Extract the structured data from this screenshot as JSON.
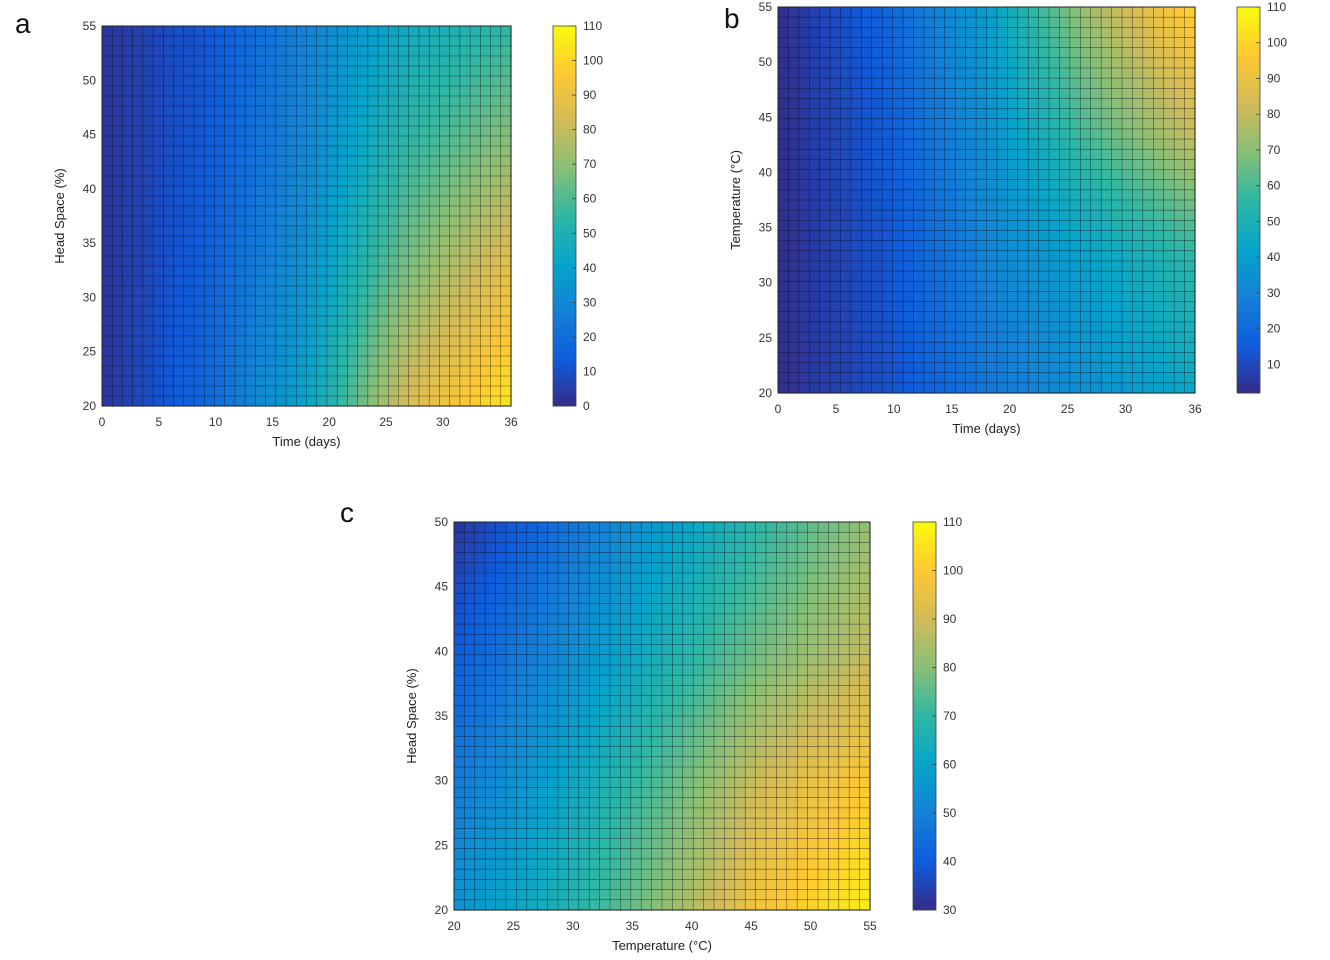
{
  "colormap": "parula",
  "chart_data": [
    {
      "type": "heatmap",
      "panel_label": "a",
      "xlabel": "Time (days)",
      "ylabel": "Head Space (%)",
      "xlim": [
        0,
        36
      ],
      "ylim": [
        20,
        55
      ],
      "xticks": [
        "0",
        "5",
        "10",
        "15",
        "20",
        "25",
        "30",
        "36"
      ],
      "yticks": [
        "20",
        "25",
        "30",
        "35",
        "40",
        "45",
        "50",
        "55"
      ],
      "colorbar": {
        "range": [
          0,
          110
        ],
        "ticks": [
          "0",
          "10",
          "20",
          "30",
          "40",
          "50",
          "60",
          "70",
          "80",
          "90",
          "100",
          "110"
        ]
      },
      "grid_x": [
        0,
        9,
        18,
        27,
        36
      ],
      "grid_y": [
        20,
        32,
        44,
        55
      ],
      "z": [
        [
          3,
          18,
          42,
          85,
          105
        ],
        [
          3,
          15,
          35,
          68,
          90
        ],
        [
          3,
          13,
          30,
          55,
          70
        ],
        [
          3,
          12,
          28,
          45,
          55
        ]
      ],
      "grid": true
    },
    {
      "type": "heatmap",
      "panel_label": "b",
      "xlabel": "Time (days)",
      "ylabel": "Temperature (°C)",
      "xlim": [
        0,
        36
      ],
      "ylim": [
        20,
        55
      ],
      "xticks": [
        "0",
        "5",
        "10",
        "15",
        "20",
        "25",
        "30",
        "36"
      ],
      "yticks": [
        "20",
        "25",
        "30",
        "35",
        "40",
        "45",
        "50",
        "55"
      ],
      "colorbar": {
        "range": [
          2,
          110
        ],
        "ticks": [
          "10",
          "20",
          "30",
          "40",
          "50",
          "60",
          "70",
          "80",
          "90",
          "100",
          "110"
        ]
      },
      "grid_x": [
        0,
        9,
        18,
        27,
        36
      ],
      "grid_y": [
        20,
        32,
        44,
        55
      ],
      "z": [
        [
          3,
          12,
          25,
          35,
          45
        ],
        [
          3,
          13,
          30,
          42,
          55
        ],
        [
          3,
          15,
          35,
          62,
          82
        ],
        [
          3,
          18,
          40,
          75,
          100
        ]
      ],
      "grid": true
    },
    {
      "type": "heatmap",
      "panel_label": "c",
      "xlabel": "Temperature (°C)",
      "ylabel": "Head Space (%)",
      "xlim": [
        20,
        55
      ],
      "ylim": [
        20,
        50
      ],
      "xticks": [
        "20",
        "25",
        "30",
        "35",
        "40",
        "45",
        "50",
        "55"
      ],
      "yticks": [
        "20",
        "25",
        "30",
        "35",
        "40",
        "45",
        "50"
      ],
      "colorbar": {
        "range": [
          30,
          110
        ],
        "ticks": [
          "30",
          "40",
          "50",
          "60",
          "70",
          "80",
          "90",
          "100",
          "110"
        ]
      },
      "grid_x": [
        20,
        29,
        38,
        46,
        55
      ],
      "grid_y": [
        20,
        30,
        40,
        50
      ],
      "z": [
        [
          55,
          66,
          82,
          98,
          108
        ],
        [
          48,
          60,
          75,
          90,
          100
        ],
        [
          40,
          52,
          66,
          78,
          88
        ],
        [
          32,
          45,
          58,
          70,
          82
        ]
      ],
      "grid": true
    }
  ]
}
